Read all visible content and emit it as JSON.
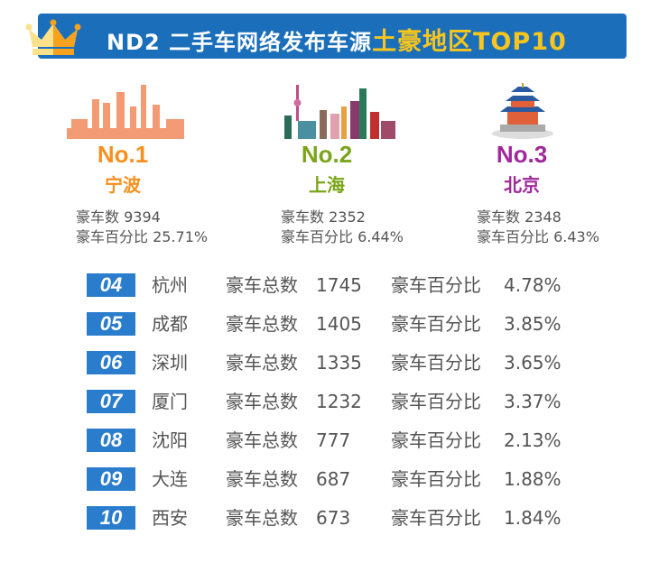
{
  "header": {
    "title_main": "ND2 二手车网络发布车源",
    "title_highlight": "土豪地区TOP10",
    "accent": "#f7c51e",
    "banner_color": "#1b6fba"
  },
  "top3": [
    {
      "rank": "No.1",
      "city": "宁波",
      "count_label": "豪车数 9394",
      "pct_label": "豪车百分比 25.71%",
      "color": "#f7901e"
    },
    {
      "rank": "No.2",
      "city": "上海",
      "count_label": "豪车数 2352",
      "pct_label": "豪车百分比 6.44%",
      "color": "#7aa51a"
    },
    {
      "rank": "No.3",
      "city": "北京",
      "count_label": "豪车数 2348",
      "pct_label": "豪车百分比 6.43%",
      "color": "#a0289a"
    }
  ],
  "list": [
    {
      "rank": "04",
      "city": "杭州",
      "count_label": "豪车总数",
      "count": "1745",
      "pct_label": "豪车百分比",
      "pct": "4.78%"
    },
    {
      "rank": "05",
      "city": "成都",
      "count_label": "豪车总数",
      "count": "1405",
      "pct_label": "豪车百分比",
      "pct": "3.85%"
    },
    {
      "rank": "06",
      "city": "深圳",
      "count_label": "豪车总数",
      "count": "1335",
      "pct_label": "豪车百分比",
      "pct": "3.65%"
    },
    {
      "rank": "07",
      "city": "厦门",
      "count_label": "豪车总数",
      "count": "1232",
      "pct_label": "豪车百分比",
      "pct": "3.37%"
    },
    {
      "rank": "08",
      "city": "沈阳",
      "count_label": "豪车总数",
      "count": "777",
      "pct_label": "豪车百分比",
      "pct": "2.13%"
    },
    {
      "rank": "09",
      "city": "大连",
      "count_label": "豪车总数",
      "count": "687",
      "pct_label": "豪车百分比",
      "pct": "1.88%"
    },
    {
      "rank": "10",
      "city": "西安",
      "count_label": "豪车总数",
      "count": "673",
      "pct_label": "豪车百分比",
      "pct": "1.84%"
    }
  ]
}
